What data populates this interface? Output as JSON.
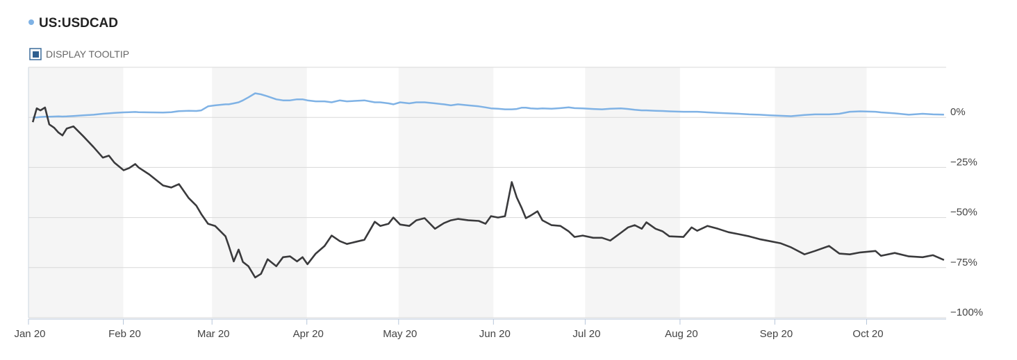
{
  "chart_data": {
    "type": "line",
    "x": [
      1.4,
      2.7,
      3.9,
      5.4,
      6.8,
      8.4,
      9.8,
      11.1,
      12.5,
      14.7,
      17.9,
      21.3,
      24.3,
      26.3,
      28.1,
      31.1,
      32.9,
      34.9,
      36,
      39.5,
      44,
      46.7,
      49.2,
      52.4,
      54.9,
      56.5,
      58.7,
      61,
      64.4,
      65.5,
      67.1,
      68.7,
      70.1,
      71.9,
      74.1,
      76,
      78.2,
      81,
      83.2,
      85.5,
      87.8,
      89.6,
      91.2,
      93.9,
      96.8,
      99.1,
      101.8,
      104.1,
      109.8,
      113.2,
      115,
      117.7,
      119.3,
      121.5,
      124.5,
      126.8,
      129.5,
      132.9,
      135.8,
      138.1,
      140.4,
      143.8,
      147.2,
      149.4,
      151.2,
      153.5,
      155.8,
      158,
      159.6,
      161.2,
      162.6,
      164.2,
      166.4,
      168,
      171,
      173.9,
      176.6,
      178.5,
      181.2,
      184.6,
      187.5,
      190.2,
      193.7,
      196,
      198.2,
      200.5,
      202,
      205,
      207.3,
      209.5,
      214.1,
      216.8,
      218.6,
      222,
      225.4,
      228.8,
      232.2,
      235.6,
      239,
      242.4,
      245.8,
      249.3,
      253.7,
      257.1,
      261.7,
      265.1,
      268.5,
      271.9,
      276.9,
      278.7,
      283.2,
      287.8,
      292.3,
      295.7,
      299.3
    ],
    "series": [
      {
        "name": "US:USDCAD",
        "color": "#7fb2e5",
        "values": [
          0,
          0,
          0.2,
          0.3,
          0.3,
          0.4,
          0.5,
          0.4,
          0.5,
          0.7,
          1,
          1.3,
          1.8,
          2,
          2.2,
          2.5,
          2.6,
          2.7,
          2.6,
          2.5,
          2.4,
          2.6,
          3.1,
          3.3,
          3.2,
          3.5,
          5.5,
          6,
          6.5,
          6.5,
          7,
          7.5,
          8.5,
          10,
          12,
          11.5,
          10.5,
          9,
          8.5,
          8.5,
          9,
          9,
          8.5,
          8,
          8,
          7.5,
          8.5,
          8,
          8.5,
          7.5,
          7.5,
          7,
          6.5,
          7.5,
          7,
          7.5,
          7.5,
          7,
          6.5,
          6,
          6.5,
          6,
          5.5,
          5,
          4.5,
          4.3,
          4,
          4,
          4.2,
          4.8,
          4.8,
          4.5,
          4.3,
          4.5,
          4.3,
          4.6,
          5,
          4.6,
          4.5,
          4.2,
          4,
          4.3,
          4.5,
          4.2,
          3.8,
          3.5,
          3.5,
          3.3,
          3.2,
          3,
          2.8,
          2.8,
          2.8,
          2.5,
          2.2,
          2,
          1.8,
          1.5,
          1.3,
          1,
          0.8,
          0.6,
          1.2,
          1.5,
          1.5,
          1.8,
          2.8,
          3,
          2.8,
          2.5,
          2,
          1.3,
          1.8,
          1.5,
          1.4
        ]
      },
      {
        "color": "#3a3a3c",
        "values": [
          -2.4,
          4.5,
          3.5,
          4.9,
          -3.5,
          -5.2,
          -7.6,
          -9,
          -5.6,
          -4.5,
          -9.4,
          -14.9,
          -20.1,
          -19.1,
          -22.6,
          -26.4,
          -25.3,
          -23.3,
          -25,
          -28.5,
          -34,
          -35,
          -33.3,
          -40.3,
          -44.1,
          -48.3,
          -53.1,
          -54.2,
          -59.4,
          -64.2,
          -71.9,
          -66,
          -72.2,
          -74.3,
          -79.9,
          -78.1,
          -70.8,
          -74.3,
          -69.8,
          -69.4,
          -71.9,
          -69.8,
          -73.3,
          -68,
          -64.2,
          -59,
          -61.8,
          -63.2,
          -61.1,
          -52.1,
          -54.2,
          -53.1,
          -50,
          -53.5,
          -54.2,
          -51.4,
          -50.3,
          -55.6,
          -52.8,
          -51.4,
          -50.7,
          -51.4,
          -51.7,
          -53.1,
          -49.3,
          -50,
          -49.3,
          -32.3,
          -39.9,
          -45.1,
          -50.3,
          -49,
          -46.9,
          -51.4,
          -53.8,
          -54.2,
          -56.9,
          -59.7,
          -59,
          -60.1,
          -60.1,
          -61.5,
          -57.6,
          -54.9,
          -53.8,
          -55.6,
          -52.4,
          -55.6,
          -56.9,
          -59.4,
          -59.7,
          -54.9,
          -56.6,
          -54.2,
          -55.6,
          -57.3,
          -58.3,
          -59.4,
          -60.8,
          -61.8,
          -62.8,
          -64.9,
          -68.4,
          -66.7,
          -64.2,
          -68,
          -68.4,
          -67.4,
          -66.7,
          -69.1,
          -67.7,
          -69.4,
          -69.8,
          -68.8,
          -71.2
        ]
      }
    ],
    "xlim": [
      0,
      300
    ],
    "xticks": [
      {
        "value": 0,
        "label": "Jan 20"
      },
      {
        "value": 31,
        "label": "Feb 20"
      },
      {
        "value": 60,
        "label": "Mar 20"
      },
      {
        "value": 91,
        "label": "Apr 20"
      },
      {
        "value": 121,
        "label": "May 20"
      },
      {
        "value": 152,
        "label": "Jun 20"
      },
      {
        "value": 182,
        "label": "Jul 20"
      },
      {
        "value": 213,
        "label": "Aug 20"
      },
      {
        "value": 244,
        "label": "Sep 20"
      },
      {
        "value": 274,
        "label": "Oct 20"
      }
    ],
    "ylim": [
      -100,
      25
    ],
    "yticks": [
      {
        "value": 0,
        "label": "0%"
      },
      {
        "value": -25,
        "label": "−25%"
      },
      {
        "value": -50,
        "label": "−50%"
      },
      {
        "value": -75,
        "label": "−75%"
      },
      {
        "value": -100,
        "label": "−100%"
      }
    ],
    "grid": true
  },
  "controls": {
    "tooltip": "DISPLAY TOOLTIP"
  }
}
